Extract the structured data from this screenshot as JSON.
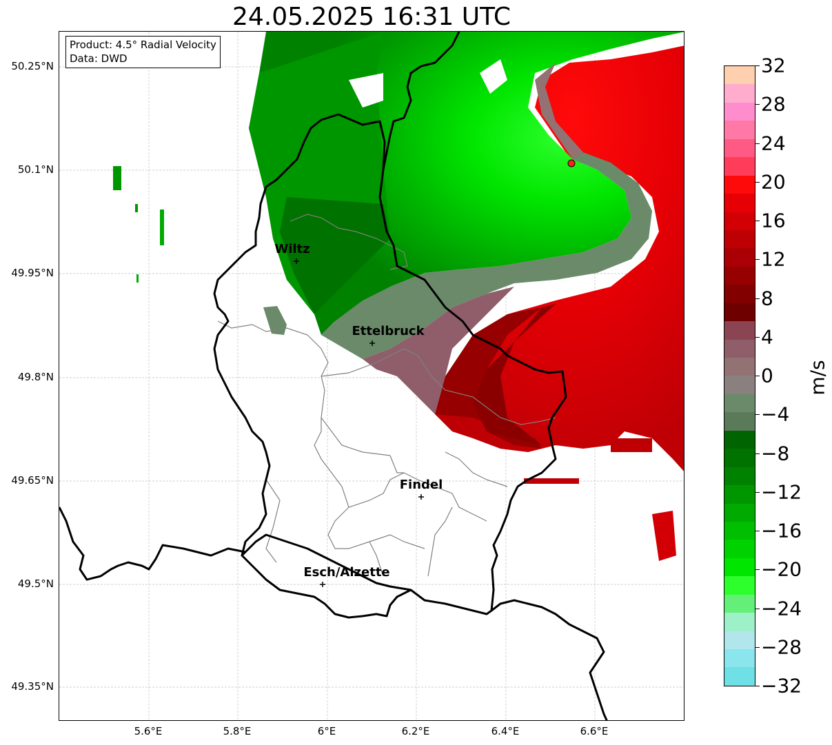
{
  "title": "24.05.2025 16:31 UTC",
  "info": {
    "product": "Product: 4.5° Radial Velocity",
    "data_source": "Data: DWD"
  },
  "axes": {
    "lat_ticks": [
      "50.25°N",
      "50.1°N",
      "49.95°N",
      "49.8°N",
      "49.65°N",
      "49.5°N",
      "49.35°N"
    ],
    "lon_ticks": [
      "5.6°E",
      "5.8°E",
      "6°E",
      "6.2°E",
      "6.4°E",
      "6.6°E"
    ],
    "gridlines": true
  },
  "cities": [
    {
      "name": "Wiltz"
    },
    {
      "name": "Ettelbruck"
    },
    {
      "name": "Findel"
    },
    {
      "name": "Esch/Alzette"
    }
  ],
  "colorbar": {
    "unit": "m/s",
    "range": [
      -32,
      32
    ],
    "ticks": [
      "32",
      "28",
      "24",
      "20",
      "16",
      "12",
      "8",
      "4",
      "0",
      "−4",
      "−8",
      "−12",
      "−16",
      "−20",
      "−24",
      "−28",
      "−32"
    ],
    "colors_top_to_bottom": [
      "#ffd0b0",
      "#ffaccd",
      "#ff8ccc",
      "#ff78a6",
      "#ff5a84",
      "#ff3c5a",
      "#ff0a0a",
      "#e60005",
      "#d20005",
      "#be0005",
      "#aa0005",
      "#960000",
      "#820000",
      "#6e0000",
      "#8a4452",
      "#8f5e6a",
      "#927272",
      "#8a8080",
      "#6a8a6a",
      "#5a7a5a",
      "#006400",
      "#007200",
      "#008200",
      "#009600",
      "#00aa00",
      "#00be00",
      "#00d200",
      "#00e600",
      "#2cff2c",
      "#64f078",
      "#9ef0c8",
      "#b0e6ec",
      "#8ae6ec",
      "#6ee0e6"
    ]
  }
}
